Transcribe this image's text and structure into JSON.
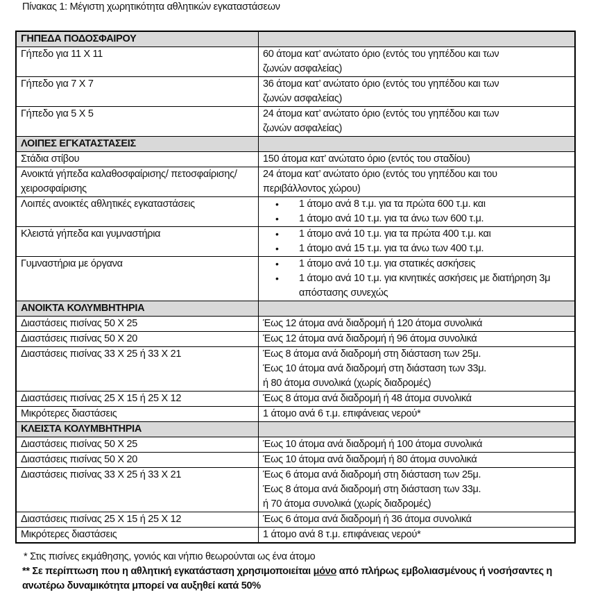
{
  "caption": "Πίνακας 1: Μέγιστη χωρητικότητα αθλητικών εγκαταστάσεων",
  "sections": [
    {
      "title": "ΓΗΠΕΔΑ ΠΟΔΟΣΦΑΙΡΟΥ",
      "rows": [
        {
          "facility": "Γήπεδο για 11 Χ 11",
          "capacity": [
            "60 άτομα κατ’ ανώτατο όριο (εντός του γηπέδου και των",
            "ζωνών ασφαλείας)"
          ]
        },
        {
          "facility": "Γήπεδο για 7 Χ 7",
          "capacity": [
            "36 άτομα κατ’ ανώτατο όριο (εντός του γηπέδου και των",
            "ζωνών ασφαλείας)"
          ]
        },
        {
          "facility": "Γήπεδο για 5 Χ 5",
          "capacity": [
            "24 άτομα κατ’ ανώτατο όριο (εντός του γηπέδου και των",
            "ζωνών ασφαλείας)"
          ]
        }
      ]
    },
    {
      "title": "ΛΟΙΠΕΣ ΕΓΚΑΤΑΣΤΑΣΕΙΣ",
      "rows": [
        {
          "facility": "Στάδια στίβου",
          "capacity": [
            "150 άτομα κατ’ ανώτατο όριο (εντός του σταδίου)"
          ]
        },
        {
          "facility": "Ανοικτά γήπεδα καλαθοσφαίρισης/ πετοσφαίρισης/ χειροσφαίρισης",
          "capacity": [
            "24 άτομα κατ’ ανώτατο όριο (εντός του γηπέδου και του",
            "περιβάλλοντος χώρου)"
          ]
        },
        {
          "facility": "Λοιπές ανοικτές αθλητικές εγκαταστάσεις",
          "bullets": [
            "1 άτομο ανά 8 τ.μ. για τα πρώτα 600 τ.μ. και",
            "1 άτομο ανά 10  τ.μ. για τα άνω των 600 τ.μ."
          ]
        },
        {
          "facility": "Κλειστά γήπεδα και γυμναστήρια",
          "bullets": [
            "1 άτομο ανά 10 τ.μ. για τα πρώτα 400 τ.μ. και",
            "1 άτομο ανά 15 τ.μ. για τα άνω των 400 τ.μ."
          ]
        },
        {
          "facility": "Γυμναστήρια με όργανα",
          "bullets": [
            "1 άτομο ανά 10  τ.μ. για στατικές ασκήσεις",
            "1 άτομο ανά 10 τ.μ. για κινητικές ασκήσεις με διατήρηση 3μ απόστασης συνεχώς"
          ]
        }
      ]
    },
    {
      "title": "ΑΝΟΙΚΤΑ ΚΟΛΥΜΒΗΤΗΡΙΑ",
      "rows": [
        {
          "facility": "Διαστάσεις πισίνας 50 Χ 25",
          "capacity": [
            "Έως 12 άτομα ανά διαδρομή ή 120 άτομα συνολικά"
          ]
        },
        {
          "facility": "Διαστάσεις πισίνας 50 Χ 20",
          "capacity": [
            "Έως 12 άτομα ανά διαδρομή ή 96 άτομα συνολικά"
          ]
        },
        {
          "facility": "Διαστάσεις πισίνας 33 Χ 25 ή 33 Χ 21",
          "capacity": [
            "Έως 8 άτομα ανά διαδρομή στη διάσταση των 25μ.",
            "Έως 10 άτομα ανά διαδρομή στη διάσταση των 33μ.",
            "ή 80 άτομα συνολικά (χωρίς διαδρομές)"
          ]
        },
        {
          "facility": "Διαστάσεις πισίνας 25 Χ 15 ή 25 Χ 12",
          "capacity": [
            "Έως 8 άτομα ανά διαδρομή ή 48 άτομα συνολικά"
          ]
        },
        {
          "facility": "Μικρότερες  διαστάσεις",
          "capacity": [
            "1 άτομο ανά 6 τ.μ. επιφάνειας νερού*"
          ]
        }
      ]
    },
    {
      "title": "ΚΛΕΙΣΤΑ ΚΟΛΥΜΒΗΤΗΡΙΑ",
      "rows": [
        {
          "facility": "Διαστάσεις πισίνας 50 Χ 25",
          "capacity": [
            "Έως 10 άτομα ανά διαδρομή ή 100 άτομα συνολικά"
          ]
        },
        {
          "facility": "Διαστάσεις πισίνας 50 Χ 20",
          "capacity": [
            "Έως 10 άτομα ανά διαδρομή ή 80 άτομα συνολικά"
          ]
        },
        {
          "facility": "Διαστάσεις πισίνας 33 Χ 25 ή 33 Χ 21",
          "capacity": [
            "Έως 6 άτομα ανά διαδρομή στη διάσταση των 25μ.",
            "Έως 8 άτομα ανά διαδρομή στη διάσταση των 33μ.",
            "ή 70 άτομα συνολικά (χωρίς διαδρομές)"
          ]
        },
        {
          "facility": "Διαστάσεις πισίνας 25 Χ 15 ή 25 Χ 12",
          "capacity": [
            "Έως 6 άτομα ανά διαδρομή ή 36 άτομα συνολικά"
          ]
        },
        {
          "facility": "Μικρότερες  διαστάσεις",
          "capacity": [
            "1 άτομο ανά 8 τ.μ. επιφάνειας νερού*"
          ]
        }
      ]
    }
  ],
  "notes": {
    "note1": "*   Στις πισίνες εκμάθησης, γονιός και νήπιο θεωρούνται ως ένα άτομο",
    "note2_prefix": "** Σε περίπτωση που η αθλητική εγκατάσταση χρησιμοποιείται ",
    "note2_underlined": "μόνο",
    "note2_suffix": " από πλήρως εμβολιασμένους ή νοσήσαντες η ανωτέρω δυναμικότητα μπορεί να αυξηθεί κατά 50%"
  }
}
